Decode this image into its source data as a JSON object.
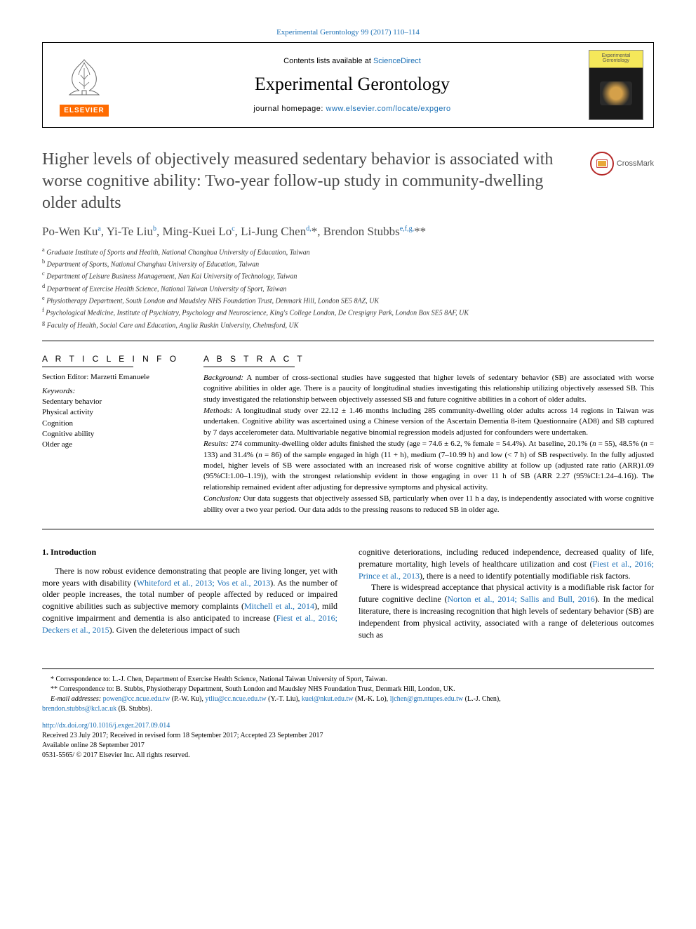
{
  "header": {
    "top_citation": "Experimental Gerontology 99 (2017) 110–114",
    "contents_prefix": "Contents lists available at ",
    "contents_link": "ScienceDirect",
    "journal_name": "Experimental Gerontology",
    "homepage_prefix": "journal homepage: ",
    "homepage_url": "www.elsevier.com/locate/expgero",
    "elsevier_label": "ELSEVIER"
  },
  "crossmark": {
    "label": "CrossMark"
  },
  "article": {
    "title": "Higher levels of objectively measured sedentary behavior is associated with worse cognitive ability: Two-year follow-up study in community-dwelling older adults",
    "authors_html": "Po-Wen Ku<sup>a</sup>, Yi-Te Liu<sup>b</sup>, Ming-Kuei Lo<sup>c</sup>, Li-Jung Chen<sup>d,</sup>*, Brendon Stubbs<sup>e,f,g,</sup>**"
  },
  "affiliations": [
    "a Graduate Institute of Sports and Health, National Changhua University of Education, Taiwan",
    "b Department of Sports, National Changhua University of Education, Taiwan",
    "c Department of Leisure Business Management, Nan Kai University of Technology, Taiwan",
    "d Department of Exercise Health Science, National Taiwan University of Sport, Taiwan",
    "e Physiotherapy Department, South London and Maudsley NHS Foundation Trust, Denmark Hill, London SE5 8AZ, UK",
    "f Psychological Medicine, Institute of Psychiatry, Psychology and Neuroscience, King's College London, De Crespigny Park, London Box SE5 8AF, UK",
    "g Faculty of Health, Social Care and Education, Anglia Ruskin University, Chelmsford, UK"
  ],
  "info": {
    "heading": "A R T I C L E  I N F O",
    "section_editor_label": "Section Editor: Marzetti Emanuele",
    "keywords_label": "Keywords:",
    "keywords": [
      "Sedentary behavior",
      "Physical activity",
      "Cognition",
      "Cognitive ability",
      "Older age"
    ]
  },
  "abstract": {
    "heading": "A B S T R A C T",
    "paragraphs": [
      "<em>Background:</em> A number of cross-sectional studies have suggested that higher levels of sedentary behavior (SB) are associated with worse cognitive abilities in older age. There is a paucity of longitudinal studies investigating this relationship utilizing objectively assessed SB. This study investigated the relationship between objectively assessed SB and future cognitive abilities in a cohort of older adults.",
      "<em>Methods:</em> A longitudinal study over 22.12 ± 1.46 months including 285 community-dwelling older adults across 14 regions in Taiwan was undertaken. Cognitive ability was ascertained using a Chinese version of the Ascertain Dementia 8-item Questionnaire (AD8) and SB captured by 7 days accelerometer data. Multivariable negative binomial regression models adjusted for confounders were undertaken.",
      "<em>Results:</em> 274 community-dwelling older adults finished the study (age = 74.6 ± 6.2, % female = 54.4%). At baseline, 20.1% (<em>n</em> = 55), 48.5% (<em>n</em> = 133) and 31.4% (<em>n</em> = 86) of the sample engaged in high (11 + h), medium (7–10.99 h) and low (< 7 h) of SB respectively. In the fully adjusted model, higher levels of SB were associated with an increased risk of worse cognitive ability at follow up (adjusted rate ratio (ARR)1.09 (95%CI:1.00–1.19)), with the strongest relationship evident in those engaging in over 11 h of SB (ARR 2.27 (95%CI:1.24–4.16)). The relationship remained evident after adjusting for depressive symptoms and physical activity.",
      "<em>Conclusion:</em> Our data suggests that objectively assessed SB, particularly when over 11 h a day, is independently associated with worse cognitive ability over a two year period. Our data adds to the pressing reasons to reduced SB in older age."
    ]
  },
  "body": {
    "section_number": "1.",
    "section_title": "Introduction",
    "col_left": "There is now robust evidence demonstrating that people are living longer, yet with more years with disability (<span class=\"cite\">Whiteford et al., 2013; Vos et al., 2013</span>). As the number of older people increases, the total number of people affected by reduced or impaired cognitive abilities such as subjective memory complaints (<span class=\"cite\">Mitchell et al., 2014</span>), mild cognitive impairment and dementia is also anticipated to increase (<span class=\"cite\">Fiest et al., 2016; Deckers et al., 2015</span>). Given the deleterious impact of such",
    "col_right_p1": "cognitive deteriorations, including reduced independence, decreased quality of life, premature mortality, high levels of healthcare utilization and cost (<span class=\"cite\">Fiest et al., 2016; Prince et al., 2013</span>), there is a need to identify potentially modifiable risk factors.",
    "col_right_p2": "There is widespread acceptance that physical activity is a modifiable risk factor for future cognitive decline (<span class=\"cite\">Norton et al., 2014; Sallis and Bull, 2016</span>). In the medical literature, there is increasing recognition that high levels of sedentary behavior (SB) are independent from physical activity, associated with a range of deleterious outcomes such as"
  },
  "footer": {
    "corr1": "* Correspondence to: L.-J. Chen, Department of Exercise Health Science, National Taiwan University of Sport, Taiwan.",
    "corr2": "** Correspondence to: B. Stubbs, Physiotherapy Department, South London and Maudsley NHS Foundation Trust, Denmark Hill, London, UK.",
    "emails_label": "E-mail addresses:",
    "emails": [
      {
        "addr": "powen@cc.ncue.edu.tw",
        "who": "(P.-W. Ku),"
      },
      {
        "addr": "ytliu@cc.ncue.edu.tw",
        "who": "(Y.-T. Liu),"
      },
      {
        "addr": "kuei@nkut.edu.tw",
        "who": "(M.-K. Lo),"
      },
      {
        "addr": "ljchen@gm.ntupes.edu.tw",
        "who": "(L.-J. Chen),"
      }
    ],
    "email_last": {
      "addr": "brendon.stubbs@kcl.ac.uk",
      "who": "(B. Stubbs)."
    },
    "doi": "http://dx.doi.org/10.1016/j.exger.2017.09.014",
    "received": "Received 23 July 2017; Received in revised form 18 September 2017; Accepted 23 September 2017",
    "available": "Available online 28 September 2017",
    "copyright": "0531-5565/ © 2017 Elsevier Inc. All rights reserved."
  },
  "colors": {
    "link": "#1a6fb5",
    "elsevier_orange": "#ff6b00",
    "crossmark_red": "#b52828",
    "title_grey": "#4a4a4a"
  }
}
